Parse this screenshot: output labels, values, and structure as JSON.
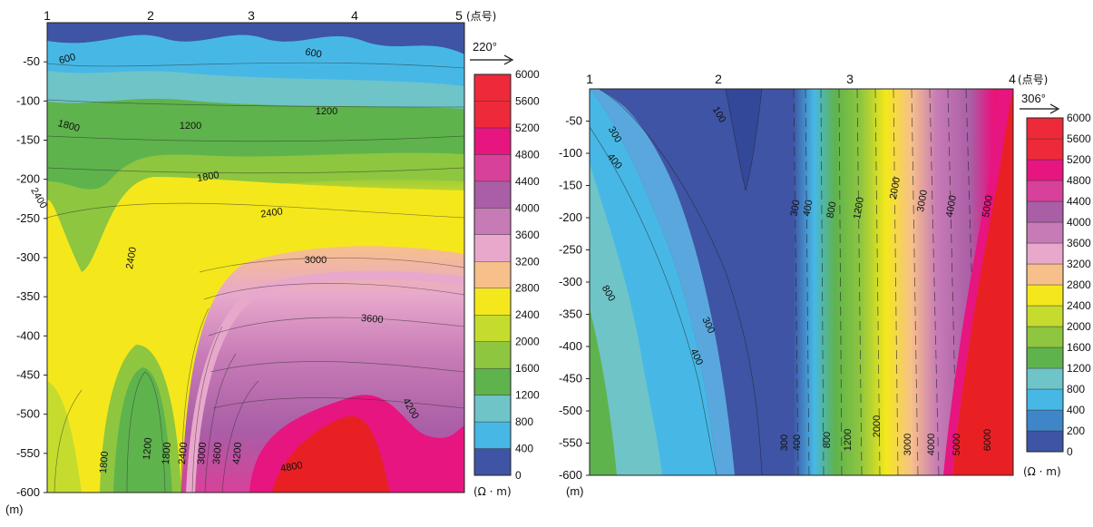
{
  "chart_data": [
    {
      "type": "heatmap",
      "title": "",
      "xlabel": "",
      "ylabel": "(m)",
      "point_numbers": [
        "1",
        "2",
        "3",
        "4",
        "5"
      ],
      "point_label": "(点号)",
      "azimuth": "220°",
      "y_ticks": [
        "-50",
        "-100",
        "-150",
        "-200",
        "-250",
        "-300",
        "-350",
        "-400",
        "-450",
        "-500",
        "-550",
        "-600"
      ],
      "ylim": [
        -600,
        0
      ],
      "colorbar_levels": [
        0,
        400,
        800,
        1200,
        1600,
        2000,
        2400,
        2800,
        3200,
        3600,
        4000,
        4400,
        4800,
        5200,
        5600,
        6000
      ],
      "colorbar_labels": [
        "0",
        "400",
        "800",
        "1200",
        "1600",
        "2000",
        "2400",
        "2800",
        "3200",
        "3600",
        "4000",
        "4400",
        "4800",
        "5200",
        "5600",
        "6000"
      ],
      "colorbar_unit": "(Ω · m)",
      "contour_labels": [
        {
          "value": "600"
        },
        {
          "value": "600"
        },
        {
          "value": "1200"
        },
        {
          "value": "1200"
        },
        {
          "value": "1800"
        },
        {
          "value": "1800"
        },
        {
          "value": "2400"
        },
        {
          "value": "2400"
        },
        {
          "value": "3000"
        },
        {
          "value": "3600"
        },
        {
          "value": "4200"
        },
        {
          "value": "2400"
        },
        {
          "value": "1800"
        },
        {
          "value": "1200"
        },
        {
          "value": "1800"
        },
        {
          "value": "2400"
        },
        {
          "value": "3000"
        },
        {
          "value": "3600"
        },
        {
          "value": "4200"
        },
        {
          "value": "4800"
        }
      ]
    },
    {
      "type": "heatmap",
      "title": "",
      "xlabel": "",
      "ylabel": "(m)",
      "point_numbers": [
        "1",
        "2",
        "3",
        "4"
      ],
      "point_label": "(点号)",
      "azimuth": "306°",
      "y_ticks": [
        "-50",
        "-100",
        "-150",
        "-200",
        "-250",
        "-300",
        "-350",
        "-400",
        "-450",
        "-500",
        "-550",
        "-600"
      ],
      "ylim": [
        -600,
        0
      ],
      "colorbar_levels": [
        0,
        200,
        400,
        800,
        1200,
        1600,
        2000,
        2400,
        2800,
        3200,
        3600,
        4000,
        4400,
        4800,
        5200,
        5600,
        6000
      ],
      "colorbar_labels": [
        "0",
        "200",
        "400",
        "800",
        "1200",
        "1600",
        "2000",
        "2400",
        "2800",
        "3200",
        "3600",
        "4000",
        "4400",
        "4800",
        "5200",
        "5600",
        "6000"
      ],
      "colorbar_unit": "(Ω · m)",
      "contour_labels": [
        {
          "value": "100"
        },
        {
          "value": "300"
        },
        {
          "value": "400"
        },
        {
          "value": "800"
        },
        {
          "value": "300"
        },
        {
          "value": "400"
        },
        {
          "value": "300"
        },
        {
          "value": "400"
        },
        {
          "value": "800"
        },
        {
          "value": "1200"
        },
        {
          "value": "2000"
        },
        {
          "value": "3000"
        },
        {
          "value": "4000"
        },
        {
          "value": "5000"
        },
        {
          "value": "300"
        },
        {
          "value": "400"
        },
        {
          "value": "800"
        },
        {
          "value": "1200"
        },
        {
          "value": "2000"
        },
        {
          "value": "3000"
        },
        {
          "value": "4000"
        },
        {
          "value": "5000"
        },
        {
          "value": "6000"
        }
      ]
    }
  ],
  "colors": {
    "c0": "#3f54a4",
    "c400": "#47b8e6",
    "c800": "#6fc4c8",
    "c1200": "#5fb34d",
    "c1600": "#8ec63f",
    "c2000": "#c5dc2e",
    "c2400": "#f4e81c",
    "c2800": "#f7c08a",
    "c3200": "#e8a8cc",
    "c3600": "#c77bb6",
    "c4000": "#a95ea6",
    "c4400": "#d8419a",
    "c4800": "#e7157f",
    "c5200": "#ee2a3a",
    "c6000": "#e82024"
  }
}
